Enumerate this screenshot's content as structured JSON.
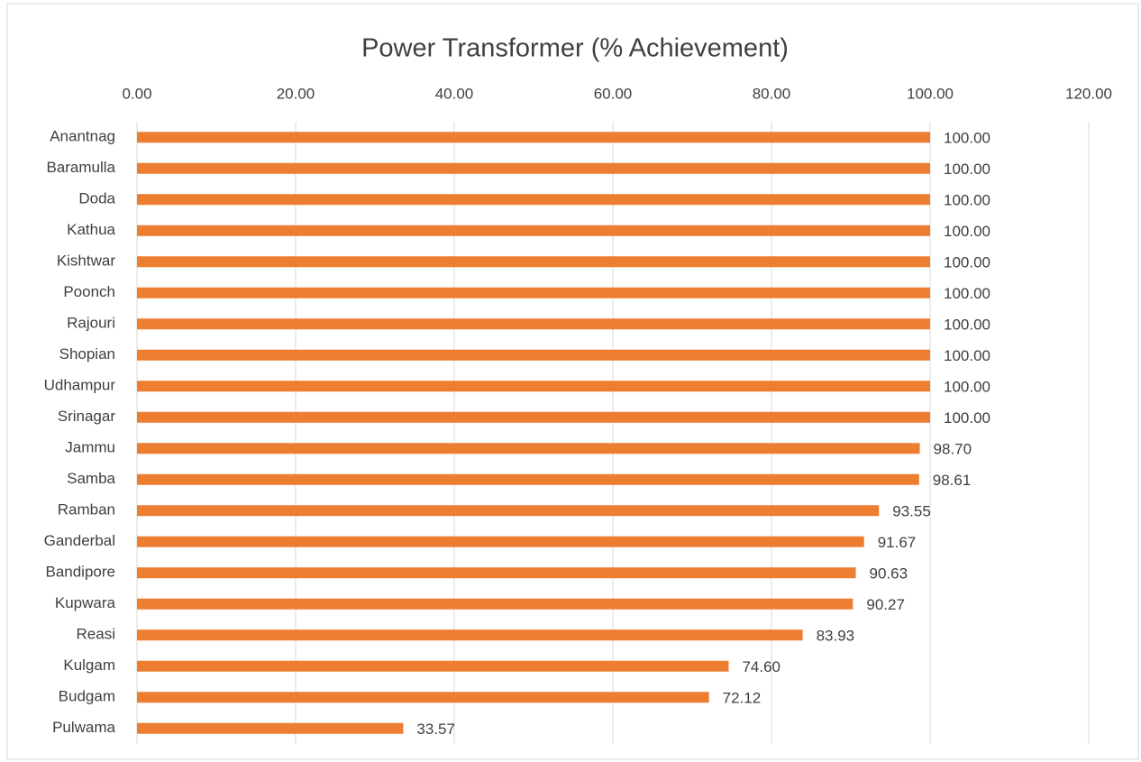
{
  "chart_data": {
    "type": "bar",
    "orientation": "horizontal",
    "title": "Power Transformer (% Achievement)",
    "categories": [
      "Anantnag",
      "Baramulla",
      "Doda",
      "Kathua",
      "Kishtwar",
      "Poonch",
      "Rajouri",
      "Shopian",
      "Udhampur",
      "Srinagar",
      "Jammu",
      "Samba",
      "Ramban",
      "Ganderbal",
      "Bandipore",
      "Kupwara",
      "Reasi",
      "Kulgam",
      "Budgam",
      "Pulwama"
    ],
    "values": [
      100,
      100,
      100,
      100,
      100,
      100,
      100,
      100,
      100,
      100,
      98.7,
      98.61,
      93.55,
      91.67,
      90.63,
      90.27,
      83.93,
      74.6,
      72.12,
      33.57
    ],
    "value_labels": [
      "100.00",
      "100.00",
      "100.00",
      "100.00",
      "100.00",
      "100.00",
      "100.00",
      "100.00",
      "100.00",
      "100.00",
      "98.70",
      "98.61",
      "93.55",
      "91.67",
      "90.63",
      "90.27",
      "83.93",
      "74.60",
      "72.12",
      "33.57"
    ],
    "color": "#ed7d31",
    "xlim": [
      0,
      120
    ],
    "xticks": [
      {
        "value": 0,
        "label": "0.00"
      },
      {
        "value": 20,
        "label": "20.00"
      },
      {
        "value": 40,
        "label": "40.00"
      },
      {
        "value": 60,
        "label": "60.00"
      },
      {
        "value": 80,
        "label": "80.00"
      },
      {
        "value": 100,
        "label": "100.00"
      },
      {
        "value": 120,
        "label": "120.00"
      }
    ],
    "grid": true
  }
}
